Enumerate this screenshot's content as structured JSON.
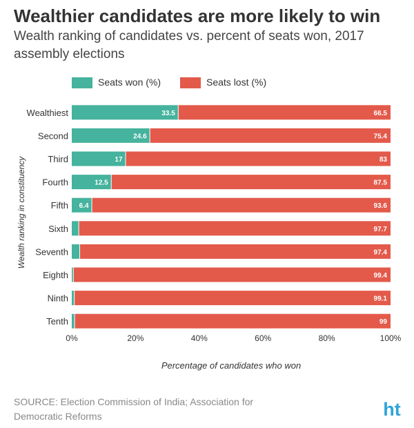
{
  "title": "Wealthier candidates are more likely to win",
  "subtitle": "Wealth ranking of candidates vs. percent of seats won, 2017 assembly elections",
  "source": "SOURCE: Election Commission of India; Association for Democratic Reforms",
  "logo_text": "ht",
  "colors": {
    "won": "#45b39d",
    "lost": "#e35a4b",
    "logo": "#2fa4d8"
  },
  "chart_data": {
    "type": "bar",
    "orientation": "horizontal",
    "stacked": true,
    "categories": [
      "Wealthiest",
      "Second",
      "Third",
      "Fourth",
      "Fifth",
      "Sixth",
      "Seventh",
      "Eighth",
      "Ninth",
      "Tenth"
    ],
    "series": [
      {
        "name": "Seats won (%)",
        "values": [
          33.5,
          24.6,
          17,
          12.5,
          6.4,
          2.3,
          2.6,
          0.6,
          0.9,
          1
        ],
        "labels": [
          "33.5",
          "24.6",
          "17",
          "12.5",
          "6.4",
          "",
          "",
          "",
          "",
          ""
        ]
      },
      {
        "name": "Seats lost (%)",
        "values": [
          66.5,
          75.4,
          83,
          87.5,
          93.6,
          97.7,
          97.4,
          99.4,
          99.1,
          99
        ],
        "labels": [
          "66.5",
          "75.4",
          "83",
          "87.5",
          "93.6",
          "97.7",
          "97.4",
          "99.4",
          "99.1",
          "99"
        ]
      }
    ],
    "xlim": [
      0,
      100
    ],
    "xticks": [
      "0%",
      "20%",
      "40%",
      "60%",
      "80%",
      "100%"
    ],
    "xlabel": "Percentage of candidates who won",
    "ylabel": "Wealth ranking in constituency",
    "legend_position": "top-left",
    "grid": false
  }
}
